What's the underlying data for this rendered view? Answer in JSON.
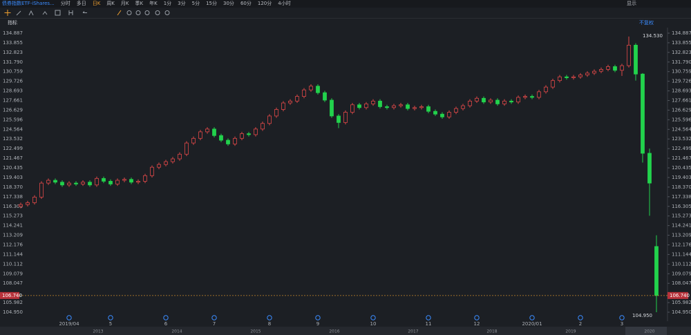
{
  "toolbar": {
    "title": "债券指数ETF-iShares...",
    "periods": [
      "分时",
      "多日",
      "日K",
      "周K",
      "月K",
      "季K",
      "年K",
      "1分",
      "3分",
      "5分",
      "15分",
      "30分",
      "60分",
      "120分",
      "4小时"
    ],
    "active": "日K",
    "display": "显示"
  },
  "panel": {
    "indicator": "指标",
    "adjust": "不复权"
  },
  "chart_data": {
    "type": "candlestick",
    "categories": [
      null,
      null,
      null,
      null,
      null,
      null,
      null,
      "2019/04",
      null,
      null,
      null,
      null,
      null,
      "5",
      null,
      null,
      null,
      null,
      null,
      null,
      null,
      "6",
      null,
      null,
      null,
      null,
      null,
      null,
      "7",
      null,
      null,
      null,
      null,
      null,
      null,
      null,
      "8",
      null,
      null,
      null,
      null,
      null,
      null,
      "9",
      null,
      null,
      null,
      null,
      null,
      null,
      null,
      "10",
      null,
      null,
      null,
      null,
      null,
      null,
      null,
      "11",
      null,
      null,
      null,
      null,
      null,
      null,
      "12",
      null,
      null,
      null,
      null,
      null,
      null,
      null,
      "2020/01",
      null,
      null,
      null,
      null,
      null,
      null,
      "2",
      null,
      null,
      null,
      null,
      null,
      "3",
      null,
      null,
      null,
      null,
      null
    ],
    "open": [
      116.3,
      116.5,
      116.7,
      117.3,
      118.8,
      119.1,
      118.9,
      118.6,
      118.8,
      118.7,
      118.9,
      118.6,
      119.3,
      119.0,
      118.7,
      119.1,
      119.2,
      118.9,
      119.0,
      119.6,
      120.5,
      120.8,
      121.1,
      121.4,
      121.9,
      123.1,
      123.6,
      124.3,
      124.6,
      123.9,
      123.4,
      123.0,
      123.6,
      124.1,
      124.0,
      124.6,
      125.2,
      126.0,
      126.7,
      127.4,
      127.6,
      128.1,
      128.8,
      129.2,
      128.5,
      127.7,
      126.0,
      125.3,
      126.4,
      127.2,
      126.9,
      127.3,
      127.6,
      127.0,
      126.9,
      127.1,
      127.2,
      126.8,
      126.9,
      127.0,
      126.5,
      126.2,
      125.9,
      126.4,
      126.8,
      127.1,
      127.6,
      127.9,
      127.5,
      127.7,
      127.3,
      127.6,
      127.5,
      128.0,
      128.1,
      128.0,
      128.6,
      129.1,
      129.8,
      130.2,
      130.1,
      130.2,
      130.4,
      130.6,
      130.8,
      131.0,
      131.3,
      130.9,
      131.4,
      133.6,
      130.5,
      122.0,
      112.0
    ],
    "high": [
      116.7,
      116.9,
      117.5,
      119.0,
      119.3,
      119.3,
      119.1,
      119.0,
      119.0,
      119.1,
      119.1,
      119.5,
      119.5,
      119.2,
      119.3,
      119.4,
      119.4,
      119.2,
      119.8,
      120.7,
      121.0,
      121.3,
      121.6,
      122.1,
      123.3,
      123.8,
      124.5,
      124.8,
      124.8,
      124.1,
      123.6,
      123.8,
      124.3,
      124.3,
      124.8,
      125.4,
      126.2,
      126.9,
      127.6,
      127.8,
      128.3,
      129.0,
      129.4,
      129.4,
      128.7,
      127.9,
      126.2,
      126.6,
      127.4,
      127.4,
      127.5,
      127.8,
      127.8,
      127.2,
      127.3,
      127.4,
      127.4,
      127.1,
      127.2,
      127.2,
      126.7,
      126.4,
      126.6,
      127.0,
      127.3,
      127.8,
      128.1,
      128.1,
      127.9,
      127.9,
      127.8,
      127.8,
      128.2,
      128.3,
      128.3,
      128.8,
      129.3,
      130.0,
      130.4,
      130.4,
      130.4,
      130.6,
      130.8,
      131.0,
      131.2,
      131.5,
      131.5,
      131.6,
      134.53,
      133.8,
      130.6,
      122.5,
      113.2
    ],
    "low": [
      116.1,
      116.3,
      116.5,
      117.1,
      118.6,
      118.7,
      118.4,
      118.4,
      118.5,
      118.5,
      118.4,
      118.4,
      118.8,
      118.5,
      118.5,
      118.9,
      118.7,
      118.7,
      118.8,
      119.4,
      120.3,
      120.6,
      120.9,
      121.2,
      121.7,
      122.9,
      123.4,
      124.1,
      123.7,
      123.2,
      122.8,
      122.8,
      123.4,
      123.8,
      123.8,
      124.4,
      125.0,
      125.8,
      126.5,
      127.2,
      127.4,
      127.9,
      128.6,
      128.3,
      127.5,
      125.8,
      124.7,
      125.1,
      126.2,
      126.7,
      126.7,
      127.1,
      126.8,
      126.7,
      126.7,
      126.9,
      126.6,
      126.6,
      126.7,
      126.3,
      126.0,
      125.7,
      125.7,
      126.2,
      126.6,
      126.9,
      127.4,
      127.3,
      127.3,
      127.1,
      127.1,
      127.3,
      127.3,
      127.8,
      127.8,
      127.8,
      128.4,
      128.9,
      129.6,
      129.9,
      129.9,
      130.0,
      130.2,
      130.4,
      130.6,
      130.8,
      130.7,
      130.3,
      131.2,
      129.8,
      121.0,
      115.3,
      104.95
    ],
    "close": [
      116.5,
      116.7,
      117.3,
      118.8,
      119.1,
      118.9,
      118.6,
      118.8,
      118.7,
      118.9,
      118.6,
      119.3,
      119.0,
      118.7,
      119.1,
      119.2,
      118.9,
      119.0,
      119.6,
      120.5,
      120.8,
      121.1,
      121.4,
      121.9,
      123.1,
      123.6,
      124.3,
      124.6,
      123.9,
      123.4,
      123.0,
      123.6,
      124.1,
      124.0,
      124.6,
      125.2,
      126.0,
      126.7,
      127.4,
      127.6,
      128.1,
      128.8,
      129.2,
      128.5,
      127.7,
      126.0,
      125.3,
      126.4,
      127.2,
      126.9,
      127.3,
      127.6,
      127.0,
      126.9,
      127.1,
      127.2,
      126.8,
      126.9,
      127.0,
      126.5,
      126.2,
      125.9,
      126.4,
      126.8,
      127.1,
      127.6,
      127.9,
      127.5,
      127.7,
      127.3,
      127.6,
      127.5,
      128.0,
      128.1,
      128.0,
      128.6,
      129.1,
      129.8,
      130.2,
      130.1,
      130.2,
      130.4,
      130.6,
      130.8,
      131.0,
      131.3,
      130.9,
      131.4,
      133.6,
      130.5,
      122.0,
      118.8,
      106.74
    ],
    "up_color": "#e04848",
    "down_color": "#22d24c",
    "ylim": [
      104.95,
      134.887
    ],
    "yticks": [
      {
        "value": 104.95,
        "label": "104.950"
      },
      105.982,
      108.047,
      109.079,
      110.112,
      111.144,
      112.176,
      113.209,
      114.241,
      115.273,
      116.305,
      117.338,
      {
        "value": 118.37,
        "label": "118.370"
      },
      119.403,
      120.435,
      121.467,
      122.499,
      123.532,
      124.564,
      125.596,
      126.629,
      127.661,
      128.693,
      129.726,
      130.759,
      {
        "value": 131.79,
        "label": "131.790"
      },
      132.823,
      133.855,
      134.887
    ],
    "last_price": {
      "value": 106.74,
      "label": "106.740"
    },
    "max_label": {
      "value": 134.53,
      "label": "134.530"
    },
    "min_label": {
      "value": 104.95,
      "label": "104.950"
    },
    "navigator_labels": [
      "2013",
      "2014",
      "2015",
      "2016",
      "2017",
      "2018",
      "2019",
      "2020"
    ],
    "grid": false
  }
}
